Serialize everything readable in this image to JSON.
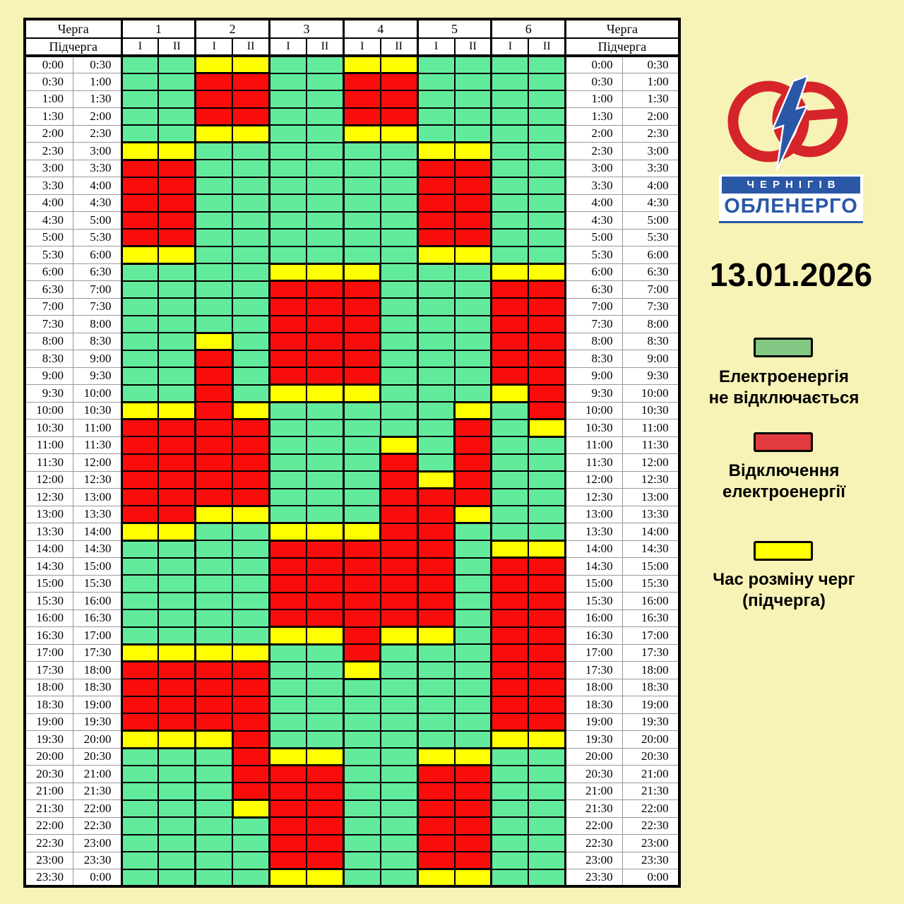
{
  "date": "13.01.2026",
  "logo": {
    "line1": "ЧЕРНІГІВ",
    "line2": "ОБЛЕНЕРГО"
  },
  "colors": {
    "G": "#63EB9D",
    "R": "#F90D0A",
    "Y": "#FFFF00",
    "background": "#F7F2B5",
    "grid": "#000000",
    "logo_red": "#D6242B",
    "logo_blue": "#2B57A7"
  },
  "table": {
    "queue_label": "Черга",
    "subqueue_label": "Підчерга",
    "queues": [
      "1",
      "2",
      "3",
      "4",
      "5",
      "6"
    ],
    "subqueues": [
      "І",
      "ІІ"
    ],
    "rows": [
      {
        "start": "0:00",
        "end": "0:30",
        "cells": "GGYYGGYYGGGG"
      },
      {
        "start": "0:30",
        "end": "1:00",
        "cells": "GGRRGGRRGGGG"
      },
      {
        "start": "1:00",
        "end": "1:30",
        "cells": "GGRRGGRRGGGG"
      },
      {
        "start": "1:30",
        "end": "2:00",
        "cells": "GGRRGGRRGGGG"
      },
      {
        "start": "2:00",
        "end": "2:30",
        "cells": "GGYYGGYYGGGG"
      },
      {
        "start": "2:30",
        "end": "3:00",
        "cells": "YYGGGGGGYYGG"
      },
      {
        "start": "3:00",
        "end": "3:30",
        "cells": "RRGGGGGGRRGG"
      },
      {
        "start": "3:30",
        "end": "4:00",
        "cells": "RRGGGGGGRRGG"
      },
      {
        "start": "4:00",
        "end": "4:30",
        "cells": "RRGGGGGGRRGG"
      },
      {
        "start": "4:30",
        "end": "5:00",
        "cells": "RRGGGGGGRRGG"
      },
      {
        "start": "5:00",
        "end": "5:30",
        "cells": "RRGGGGGGRRGG"
      },
      {
        "start": "5:30",
        "end": "6:00",
        "cells": "YYGGGGGGYYGG"
      },
      {
        "start": "6:00",
        "end": "6:30",
        "cells": "GGGGYYYGGGYY"
      },
      {
        "start": "6:30",
        "end": "7:00",
        "cells": "GGGGRRRGGGRR"
      },
      {
        "start": "7:00",
        "end": "7:30",
        "cells": "GGGGRRRGGGRR"
      },
      {
        "start": "7:30",
        "end": "8:00",
        "cells": "GGGGRRRGGGRR"
      },
      {
        "start": "8:00",
        "end": "8:30",
        "cells": "GGYGRRRGGGRR"
      },
      {
        "start": "8:30",
        "end": "9:00",
        "cells": "GGRGRRRGGGRR"
      },
      {
        "start": "9:00",
        "end": "9:30",
        "cells": "GGRGRRRGGGRR"
      },
      {
        "start": "9:30",
        "end": "10:00",
        "cells": "GGRGYYYGGGYR"
      },
      {
        "start": "10:00",
        "end": "10:30",
        "cells": "YYRYGGGGGYGR"
      },
      {
        "start": "10:30",
        "end": "11:00",
        "cells": "RRRRGGGGGRGY"
      },
      {
        "start": "11:00",
        "end": "11:30",
        "cells": "RRRRGGGYGRGG"
      },
      {
        "start": "11:30",
        "end": "12:00",
        "cells": "RRRRGGGRGRGG"
      },
      {
        "start": "12:00",
        "end": "12:30",
        "cells": "RRRRGGGRYRGG"
      },
      {
        "start": "12:30",
        "end": "13:00",
        "cells": "RRRRGGGRRRGG"
      },
      {
        "start": "13:00",
        "end": "13:30",
        "cells": "RRYYGGGRRYGG"
      },
      {
        "start": "13:30",
        "end": "14:00",
        "cells": "YYGGYYYRRGGG"
      },
      {
        "start": "14:00",
        "end": "14:30",
        "cells": "GGGGRRRRRGYY"
      },
      {
        "start": "14:30",
        "end": "15:00",
        "cells": "GGGGRRRRRGRR"
      },
      {
        "start": "15:00",
        "end": "15:30",
        "cells": "GGGGRRRRRGRR"
      },
      {
        "start": "15:30",
        "end": "16:00",
        "cells": "GGGGRRRRRGRR"
      },
      {
        "start": "16:00",
        "end": "16:30",
        "cells": "GGGGRRRRRGRR"
      },
      {
        "start": "16:30",
        "end": "17:00",
        "cells": "GGGGYYRYYGRR"
      },
      {
        "start": "17:00",
        "end": "17:30",
        "cells": "YYYYGGRGGGRR"
      },
      {
        "start": "17:30",
        "end": "18:00",
        "cells": "RRRRGGYGGGRR"
      },
      {
        "start": "18:00",
        "end": "18:30",
        "cells": "RRRRGGGGGGRR"
      },
      {
        "start": "18:30",
        "end": "19:00",
        "cells": "RRRRGGGGGGRR"
      },
      {
        "start": "19:00",
        "end": "19:30",
        "cells": "RRRRGGGGGGRR"
      },
      {
        "start": "19:30",
        "end": "20:00",
        "cells": "YYYRGGGGGGYY"
      },
      {
        "start": "20:00",
        "end": "20:30",
        "cells": "GGGRYYGGYYGG"
      },
      {
        "start": "20:30",
        "end": "21:00",
        "cells": "GGGRRRGGRRGG"
      },
      {
        "start": "21:00",
        "end": "21:30",
        "cells": "GGGRRRGGRRGG"
      },
      {
        "start": "21:30",
        "end": "22:00",
        "cells": "GGGYRRGGRRGG"
      },
      {
        "start": "22:00",
        "end": "22:30",
        "cells": "GGGGRRGGRRGG"
      },
      {
        "start": "22:30",
        "end": "23:00",
        "cells": "GGGGRRGGRRGG"
      },
      {
        "start": "23:00",
        "end": "23:30",
        "cells": "GGGGRRGGRRGG"
      },
      {
        "start": "23:30",
        "end": "0:00",
        "cells": "GGGGYYGGYYGG"
      }
    ]
  },
  "legend": [
    {
      "code": "G",
      "color": "#82C884",
      "lines": [
        "Електроенергія",
        "не відключається"
      ]
    },
    {
      "code": "R",
      "color": "#E23B3F",
      "lines": [
        "Відключення",
        "електроенергії"
      ]
    },
    {
      "code": "Y",
      "color": "#FFFF00",
      "lines": [
        "Час розміну черг",
        "(підчерга)"
      ]
    }
  ],
  "chart_data": {
    "type": "heatmap",
    "x": [
      "1-І",
      "1-ІІ",
      "2-І",
      "2-ІІ",
      "3-І",
      "3-ІІ",
      "4-І",
      "4-ІІ",
      "5-І",
      "5-ІІ",
      "6-І",
      "6-ІІ"
    ],
    "y": [
      "0:00-0:30",
      "0:30-1:00",
      "1:00-1:30",
      "1:30-2:00",
      "2:00-2:30",
      "2:30-3:00",
      "3:00-3:30",
      "3:30-4:00",
      "4:00-4:30",
      "4:30-5:00",
      "5:00-5:30",
      "5:30-6:00",
      "6:00-6:30",
      "6:30-7:00",
      "7:00-7:30",
      "7:30-8:00",
      "8:00-8:30",
      "8:30-9:00",
      "9:00-9:30",
      "9:30-10:00",
      "10:00-10:30",
      "10:30-11:00",
      "11:00-11:30",
      "11:30-12:00",
      "12:00-12:30",
      "12:30-13:00",
      "13:00-13:30",
      "13:30-14:00",
      "14:00-14:30",
      "14:30-15:00",
      "15:00-15:30",
      "15:30-16:00",
      "16:00-16:30",
      "16:30-17:00",
      "17:00-17:30",
      "17:30-18:00",
      "18:00-18:30",
      "18:30-19:00",
      "19:00-19:30",
      "19:30-20:00",
      "20:00-20:30",
      "20:30-21:00",
      "21:00-21:30",
      "21:30-22:00",
      "22:00-22:30",
      "22:30-23:00",
      "23:00-23:30",
      "23:30-0:00"
    ],
    "values": [
      "GGYYGGYYGGGG",
      "GGRRGGRRGGGG",
      "GGRRGGRRGGGG",
      "GGRRGGRRGGGG",
      "GGYYGGYYGGGG",
      "YYGGGGGGYYGG",
      "RRGGGGGGRRGG",
      "RRGGGGGGRRGG",
      "RRGGGGGGRRGG",
      "RRGGGGGGRRGG",
      "RRGGGGGGRRGG",
      "YYGGGGGGYYGG",
      "GGGGYYYGGGYY",
      "GGGGRRRGGGRR",
      "GGGGRRRGGGRR",
      "GGGGRRRGGGRR",
      "GGYGRRRGGGRR",
      "GGRGRRRGGGRR",
      "GGRGRRRGGGRR",
      "GGRGYYYGGGYR",
      "YYRYGGGGGYGR",
      "RRRRGGGGGRGY",
      "RRRRGGGYGRGG",
      "RRRRGGGRGRGG",
      "RRRRGGGRYRGG",
      "RRRRGGGRRRGG",
      "RRYYGGGRRYGG",
      "YYGGYYYRRGGG",
      "GGGGRRRRRGYY",
      "GGGGRRRRRGRR",
      "GGGGRRRRRGRR",
      "GGGGRRRRRGRR",
      "GGGGRRRRRGRR",
      "GGGGYYRYYGRR",
      "YYYYGGRGGGRR",
      "RRRRGGYGGGRR",
      "RRRRGGGGGGRR",
      "RRRRGGGGGGRR",
      "RRRRGGGGGGRR",
      "YYYRGGGGGGYY",
      "GGGRYYGGYYGG",
      "GGGRRRGGRRGG",
      "GGGRRRGGRRGG",
      "GGGYRRGGRRGG",
      "GGGGRRGGRRGG",
      "GGGGRRGGRRGG",
      "GGGGRRGGRRGG",
      "GGGGYYGGYYGG"
    ],
    "value_legend": {
      "G": "Електроенергія не відключається",
      "R": "Відключення електроенергії",
      "Y": "Час розміну черг (підчерга)"
    },
    "date": "13.01.2026"
  }
}
